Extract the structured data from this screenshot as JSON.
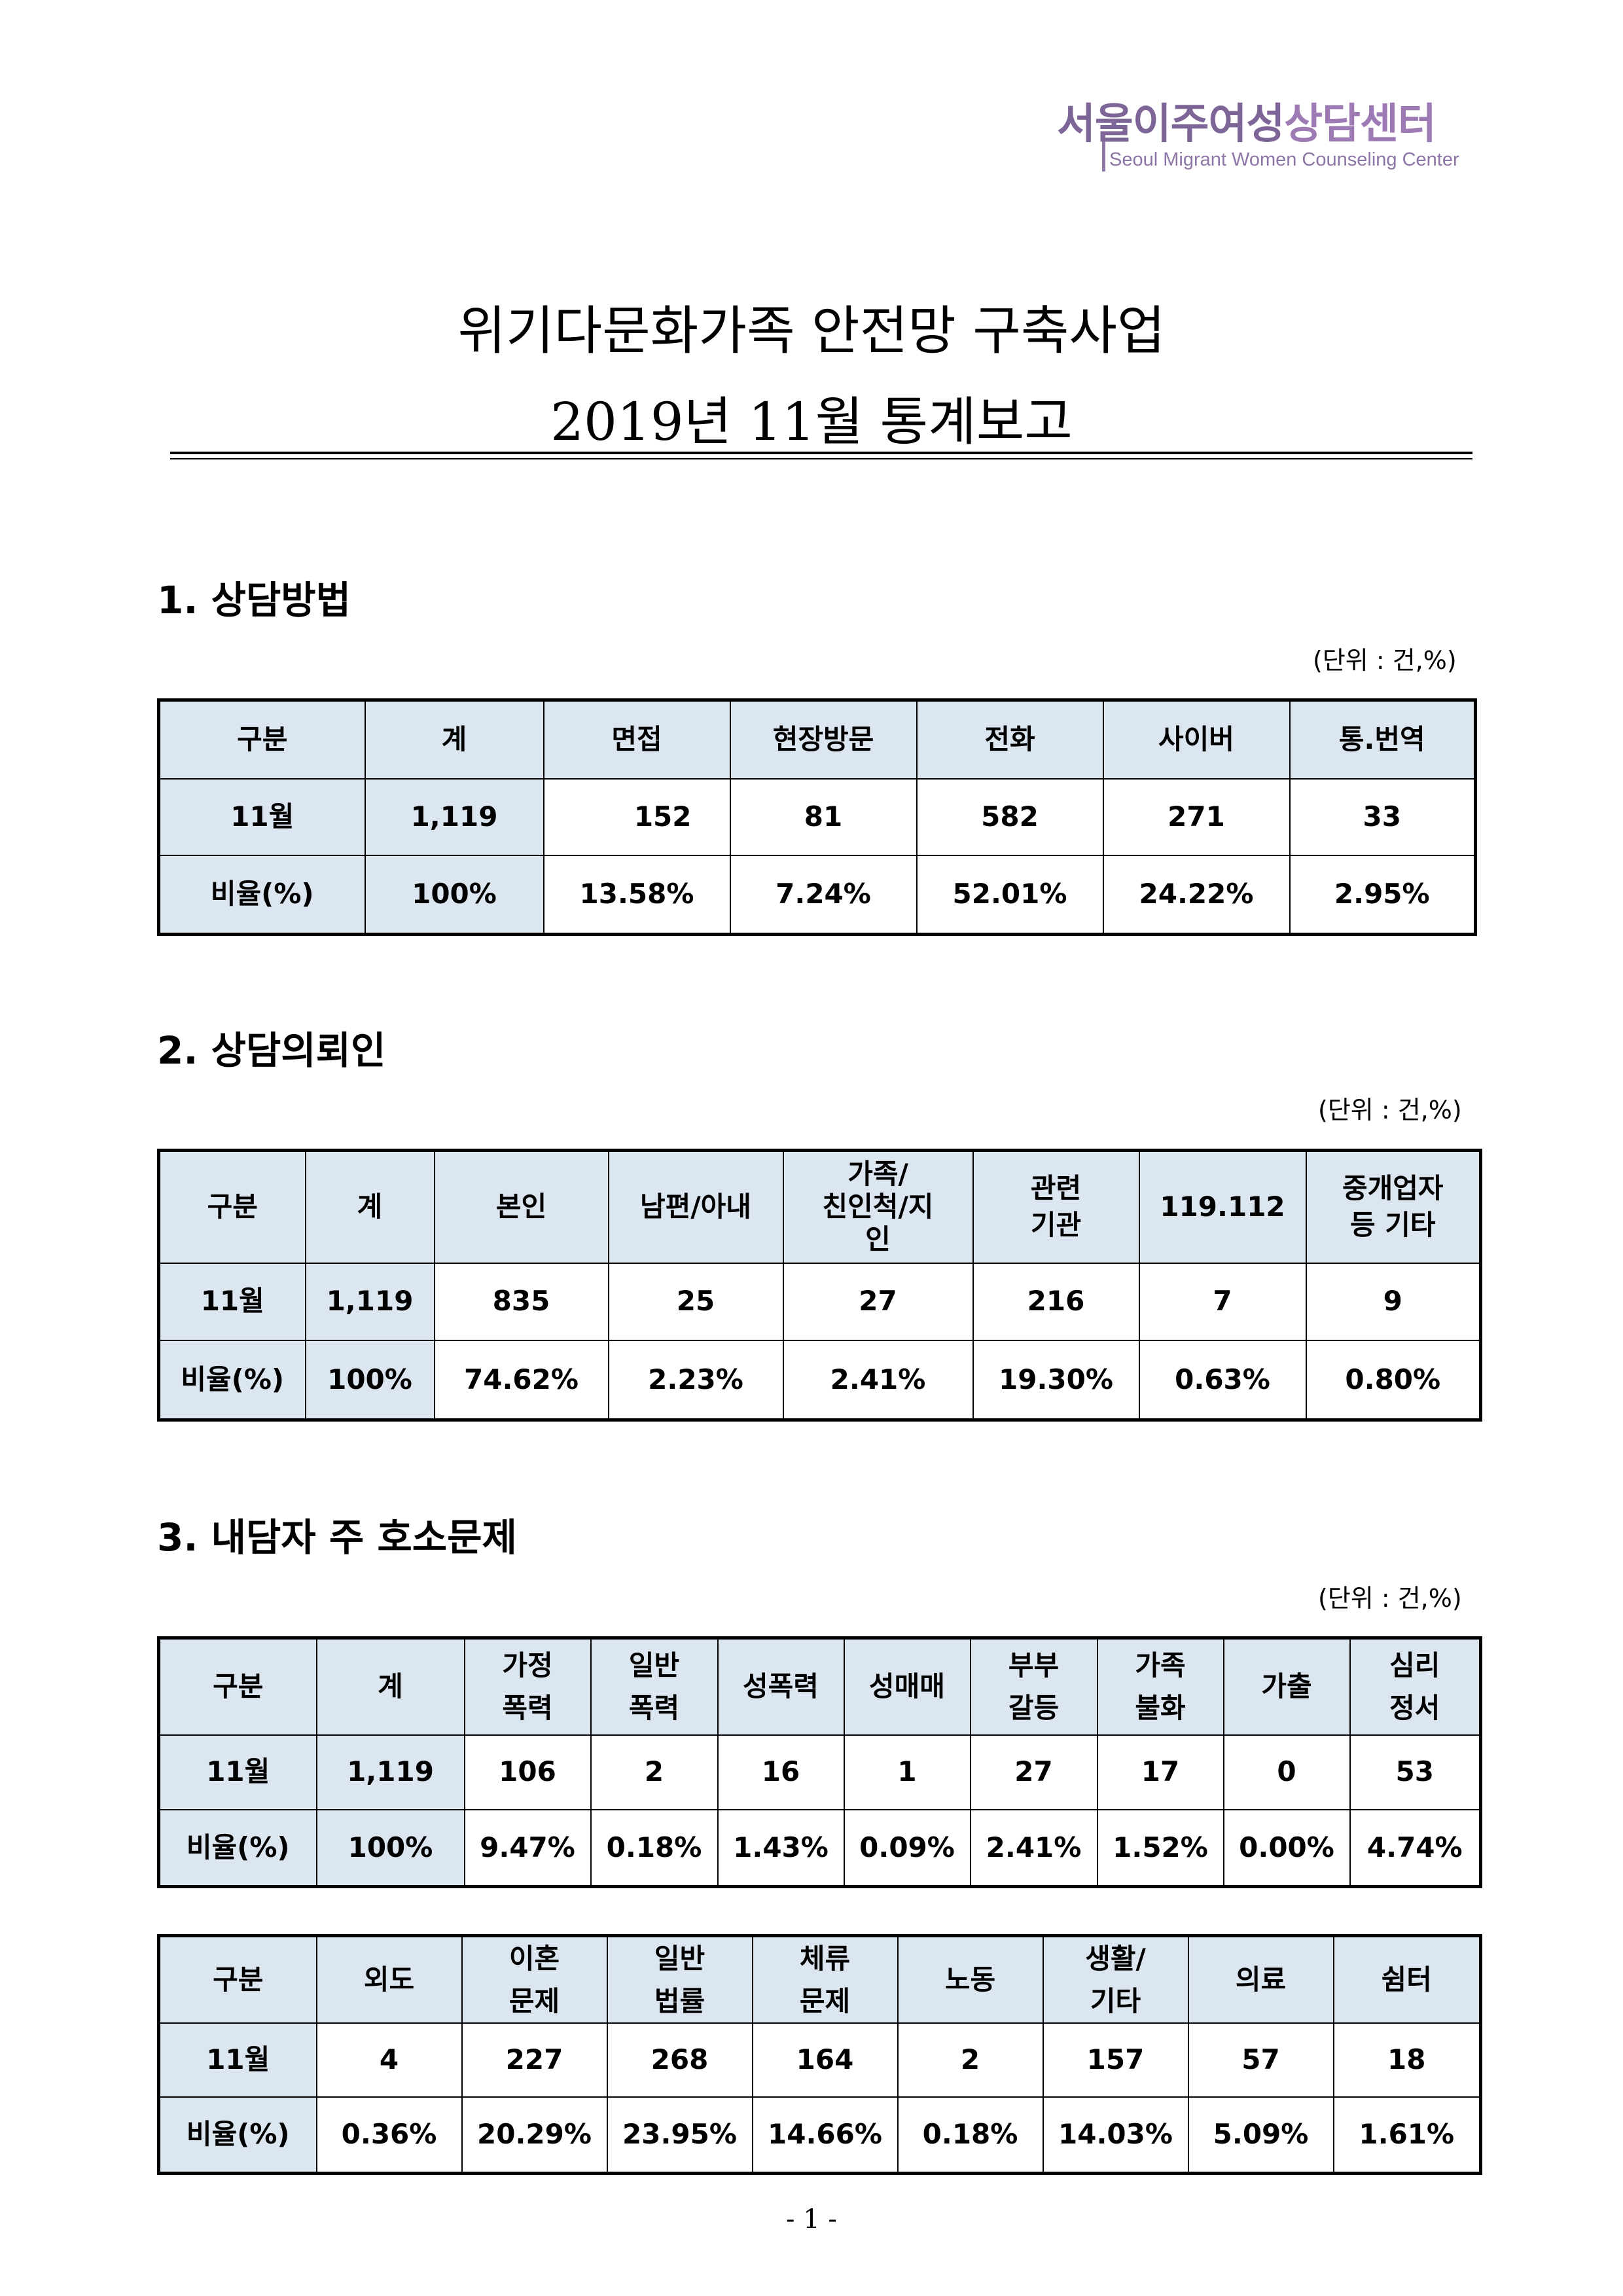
{
  "logo": {
    "text_ko_a": "서울이주여성",
    "text_ko_b": "상담센터",
    "text_en": "Seoul Migrant Women Counseling Center",
    "color": "#7d6597"
  },
  "title": {
    "line1": "위기다문화가족 안전망 구축사업",
    "line2": "2019년 11월 통계보고"
  },
  "unit_label": "(단위 : 건,%)",
  "section1": {
    "heading": "1. 상담방법",
    "headers": [
      "구분",
      "계",
      "면접",
      "현장방문",
      "전화",
      "사이버",
      "통.번역"
    ],
    "count_row": [
      "11월",
      "1,119",
      "152",
      "81",
      "582",
      "271",
      "33"
    ],
    "ratio_row": [
      "비율(%)",
      "100%",
      "13.58%",
      "7.24%",
      "52.01%",
      "24.22%",
      "2.95%"
    ]
  },
  "section2": {
    "heading": "2. 상담의뢰인",
    "headers": [
      "구분",
      "계",
      "본인",
      "남편/아내",
      "가족/\n친인척/지\n인",
      "관련\n기관",
      "119.112",
      "중개업자\n등 기타"
    ],
    "count_row": [
      "11월",
      "1,119",
      "835",
      "25",
      "27",
      "216",
      "7",
      "9"
    ],
    "ratio_row": [
      "비율(%)",
      "100%",
      "74.62%",
      "2.23%",
      "2.41%",
      "19.30%",
      "0.63%",
      "0.80%"
    ]
  },
  "section3": {
    "heading": "3. 내담자 주 호소문제",
    "table_a": {
      "headers": [
        "구분",
        "계",
        "가정\n폭력",
        "일반\n폭력",
        "성폭력",
        "성매매",
        "부부\n갈등",
        "가족\n불화",
        "가출",
        "심리\n정서"
      ],
      "count_row": [
        "11월",
        "1,119",
        "106",
        "2",
        "16",
        "1",
        "27",
        "17",
        "0",
        "53"
      ],
      "ratio_row": [
        "비율(%)",
        "100%",
        "9.47%",
        "0.18%",
        "1.43%",
        "0.09%",
        "2.41%",
        "1.52%",
        "0.00%",
        "4.74%"
      ]
    },
    "table_b": {
      "headers": [
        "구분",
        "외도",
        "이혼\n문제",
        "일반\n법률",
        "체류\n문제",
        "노동",
        "생활/\n기타",
        "의료",
        "쉼터"
      ],
      "count_row": [
        "11월",
        "4",
        "227",
        "268",
        "164",
        "2",
        "157",
        "57",
        "18"
      ],
      "ratio_row": [
        "비율(%)",
        "0.36%",
        "20.29%",
        "23.95%",
        "14.66%",
        "0.18%",
        "14.03%",
        "5.09%",
        "1.61%"
      ]
    }
  },
  "page_number": "- 1 -",
  "colors": {
    "header_fill": "#dce6f1",
    "logo_purple": "#7d6597"
  }
}
